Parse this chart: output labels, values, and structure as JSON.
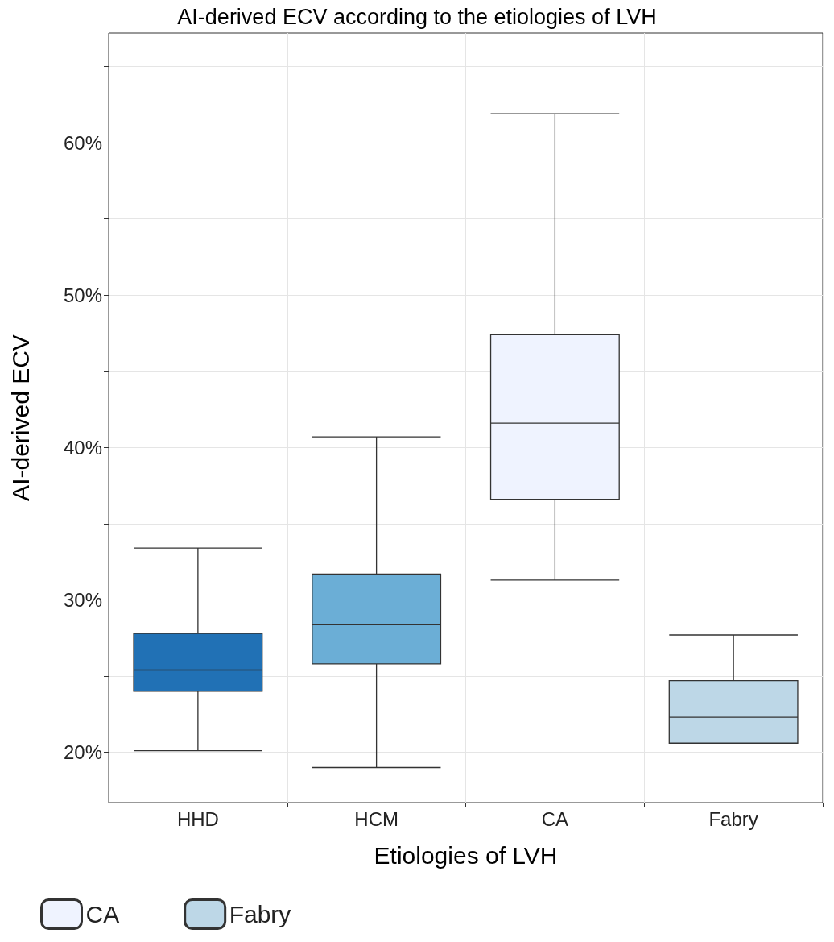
{
  "chart_data": {
    "type": "box",
    "title": "AI-derived ECV according to the etiologies of LVH",
    "xlabel": "Etiologies of LVH",
    "ylabel": "AI-derived ECV",
    "categories": [
      "HHD",
      "HCM",
      "CA",
      "Fabry"
    ],
    "series": [
      {
        "color": "#2171b5",
        "boxes": [
          {
            "low": 20.1,
            "q1": 24.0,
            "median": 25.4,
            "q3": 27.8,
            "high": 33.4
          },
          null,
          null,
          null
        ]
      },
      {
        "color": "#6baed6",
        "boxes": [
          null,
          {
            "low": 19.0,
            "q1": 25.8,
            "median": 28.4,
            "q3": 31.7,
            "high": 40.7
          },
          null,
          null
        ]
      },
      {
        "name": "CA",
        "color": "#eff3ff",
        "boxes": [
          null,
          null,
          {
            "low": 31.3,
            "q1": 36.6,
            "median": 41.6,
            "q3": 47.4,
            "high": 61.9
          },
          null
        ]
      },
      {
        "name": "Fabry",
        "color": "#bdd7e7",
        "boxes": [
          null,
          null,
          null,
          {
            "low": 20.6,
            "q1": 20.6,
            "median": 22.3,
            "q3": 24.7,
            "high": 27.7
          }
        ]
      }
    ],
    "ylim": [
      16.7,
      67.2
    ],
    "yticks": [
      {
        "value": 20,
        "label": "20%"
      },
      {
        "value": 25,
        "label": null
      },
      {
        "value": 30,
        "label": "30%"
      },
      {
        "value": 35,
        "label": null
      },
      {
        "value": 40,
        "label": "40%"
      },
      {
        "value": 45,
        "label": null
      },
      {
        "value": 50,
        "label": "50%"
      },
      {
        "value": 55,
        "label": null
      },
      {
        "value": 60,
        "label": "60%"
      },
      {
        "value": 65,
        "label": null
      }
    ],
    "grid": true,
    "legend": "bottom left"
  }
}
